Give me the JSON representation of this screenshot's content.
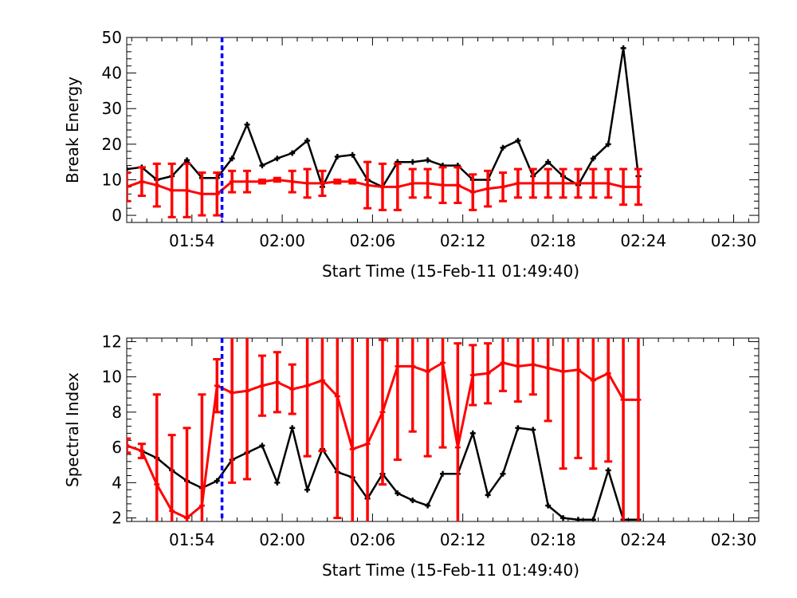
{
  "chart_data": [
    {
      "type": "line",
      "xlabel": "Start Time (15-Feb-11 01:49:40)",
      "ylabel": "Break Energy",
      "x_tick_labels": [
        "01:54",
        "02:00",
        "02:06",
        "02:12",
        "02:18",
        "02:24",
        "02:30"
      ],
      "x_tick_times": [
        "01:54",
        "02:00",
        "02:06",
        "02:12",
        "02:18",
        "02:24",
        "02:30"
      ],
      "xlim": [
        "01:49:40",
        "02:31:40"
      ],
      "ylim": [
        -2,
        50
      ],
      "y_ticks": [
        0,
        10,
        20,
        30,
        40,
        50
      ],
      "marker_line": {
        "time": "01:56:00",
        "color": "#0000ff",
        "style": "dashed"
      },
      "x": [
        "01:49:40",
        "01:50:40",
        "01:51:40",
        "01:52:40",
        "01:53:40",
        "01:54:40",
        "01:55:40",
        "01:56:40",
        "01:57:40",
        "01:58:40",
        "01:59:40",
        "02:00:40",
        "02:01:40",
        "02:02:40",
        "02:03:40",
        "02:04:40",
        "02:05:40",
        "02:06:40",
        "02:07:40",
        "02:08:40",
        "02:09:40",
        "02:10:40",
        "02:11:40",
        "02:12:40",
        "02:13:40",
        "02:14:40",
        "02:15:40",
        "02:16:40",
        "02:17:40",
        "02:18:40",
        "02:19:40",
        "02:20:40",
        "02:21:40",
        "02:22:40",
        "02:23:40"
      ],
      "series": [
        {
          "color": "#000000",
          "values": [
            13,
            13.5,
            10,
            11,
            15.5,
            10.5,
            10.5,
            16,
            25.5,
            14,
            16,
            17.5,
            21,
            8,
            16.5,
            17,
            10,
            8,
            15,
            15,
            15.5,
            14,
            14,
            10,
            10,
            19,
            21,
            11,
            15,
            11,
            8.5,
            16,
            20,
            47,
            11
          ]
        },
        {
          "color": "#ff0000",
          "values": [
            8,
            9.5,
            8.5,
            7,
            7,
            6,
            6,
            9.5,
            9.5,
            9.5,
            10,
            9.5,
            9,
            9,
            9.5,
            9.5,
            8.5,
            8,
            8,
            9,
            9,
            8.5,
            8.5,
            6.5,
            7.5,
            8,
            9,
            9,
            9,
            9,
            9,
            9,
            9,
            8,
            8
          ],
          "errors": [
            4,
            4,
            6,
            7.5,
            7.5,
            6,
            6,
            3,
            3,
            0.5,
            0.5,
            3,
            4,
            3.5,
            0.5,
            0.5,
            6.5,
            6.5,
            6.5,
            4,
            4,
            5,
            5,
            5,
            5,
            4,
            4,
            4,
            4,
            4,
            4,
            4,
            4,
            5,
            5
          ]
        }
      ]
    },
    {
      "type": "line",
      "xlabel": "Start Time (15-Feb-11 01:49:40)",
      "ylabel": "Spectral Index",
      "x_tick_labels": [
        "01:54",
        "02:00",
        "02:06",
        "02:12",
        "02:18",
        "02:24",
        "02:30"
      ],
      "x_tick_times": [
        "01:54",
        "02:00",
        "02:06",
        "02:12",
        "02:18",
        "02:24",
        "02:30"
      ],
      "xlim": [
        "01:49:40",
        "02:31:40"
      ],
      "ylim": [
        1.8,
        12.2
      ],
      "y_ticks": [
        2,
        4,
        6,
        8,
        10,
        12
      ],
      "marker_line": {
        "time": "01:56:00",
        "color": "#0000ff",
        "style": "dashed"
      },
      "x": [
        "01:49:40",
        "01:50:40",
        "01:51:40",
        "01:52:40",
        "01:53:40",
        "01:54:40",
        "01:55:40",
        "01:56:40",
        "01:57:40",
        "01:58:40",
        "01:59:40",
        "02:00:40",
        "02:01:40",
        "02:02:40",
        "02:03:40",
        "02:04:40",
        "02:05:40",
        "02:06:40",
        "02:07:40",
        "02:08:40",
        "02:09:40",
        "02:10:40",
        "02:11:40",
        "02:12:40",
        "02:13:40",
        "02:14:40",
        "02:15:40",
        "02:16:40",
        "02:17:40",
        "02:18:40",
        "02:19:40",
        "02:20:40",
        "02:21:40",
        "02:22:40",
        "02:23:40"
      ],
      "series": [
        {
          "color": "#000000",
          "values": [
            6.1,
            5.8,
            5.4,
            4.7,
            4.1,
            3.7,
            4.1,
            5.3,
            5.7,
            6.1,
            4.0,
            7.1,
            3.6,
            5.9,
            4.6,
            4.3,
            3.1,
            4.5,
            3.4,
            3.0,
            2.7,
            4.5,
            4.5,
            6.8,
            3.3,
            4.5,
            7.1,
            7.0,
            2.7,
            2.0,
            1.9,
            1.9,
            4.7,
            1.9,
            1.9
          ]
        },
        {
          "color": "#ff0000",
          "values": [
            6.1,
            5.8,
            3.9,
            2.4,
            2.0,
            2.7,
            9.5,
            9.1,
            9.2,
            9.5,
            9.7,
            9.3,
            9.5,
            9.8,
            8.9,
            5.9,
            6.2,
            8.0,
            10.6,
            10.6,
            10.3,
            10.8,
            6.0,
            10.1,
            10.2,
            10.8,
            10.6,
            10.7,
            10.5,
            10.3,
            10.4,
            9.8,
            10.2,
            8.7,
            8.7
          ],
          "errors": [
            0.4,
            0.4,
            5.1,
            4.3,
            5.1,
            6.3,
            1.5,
            5.1,
            5.0,
            1.7,
            1.7,
            1.4,
            4.0,
            4.0,
            6.9,
            6.9,
            6.2,
            4.1,
            5.3,
            3.7,
            4.8,
            4.8,
            5.9,
            1.7,
            1.7,
            1.6,
            2.0,
            1.7,
            3.0,
            5.5,
            5.0,
            5.0,
            5.0,
            7.0,
            7.0
          ]
        }
      ]
    }
  ]
}
